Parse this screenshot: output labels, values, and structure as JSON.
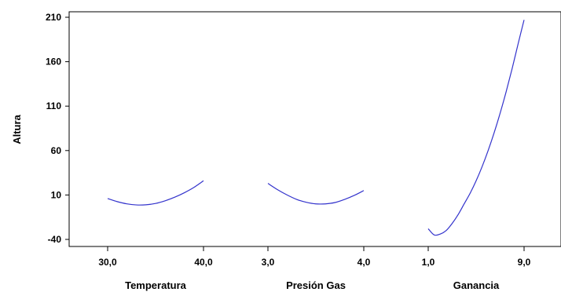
{
  "chart_data": {
    "type": "line",
    "ylabel": "Altura",
    "ylim": [
      -45,
      215
    ],
    "yticks": [
      -40,
      10,
      60,
      110,
      160,
      210
    ],
    "ytick_labels": [
      "-40",
      "10",
      "60",
      "110",
      "160",
      "210"
    ],
    "series_color": "#3333cc",
    "panels": [
      {
        "xlabel": "Temperatura",
        "tick_labels": [
          "30,0",
          "40,0"
        ],
        "x": [
          30,
          31,
          32,
          33,
          34,
          35,
          36,
          37,
          38,
          39,
          40
        ],
        "y": [
          6.0,
          2.5,
          0.0,
          -1.2,
          -1.0,
          0.5,
          3.5,
          7.5,
          12.5,
          18.5,
          26.0
        ]
      },
      {
        "xlabel": "Presión Gas",
        "tick_labels": [
          "3,0",
          "4,0"
        ],
        "x": [
          3.0,
          3.1,
          3.2,
          3.3,
          3.4,
          3.5,
          3.6,
          3.7,
          3.8,
          3.9,
          4.0
        ],
        "y": [
          23.0,
          16.0,
          10.0,
          5.0,
          1.8,
          0.0,
          0.0,
          1.5,
          5.0,
          9.5,
          15.0
        ]
      },
      {
        "xlabel": "Ganancia",
        "tick_labels": [
          "1,0",
          "9,0"
        ],
        "x": [
          1,
          1.5,
          2,
          2.5,
          3,
          3.5,
          4,
          4.5,
          5,
          5.5,
          6,
          6.5,
          7,
          7.5,
          8,
          8.5,
          9
        ],
        "y": [
          -28,
          -35,
          -34,
          -30,
          -22,
          -12,
          0,
          12,
          26,
          42,
          60,
          80,
          102,
          126,
          152,
          180,
          207
        ]
      }
    ]
  }
}
